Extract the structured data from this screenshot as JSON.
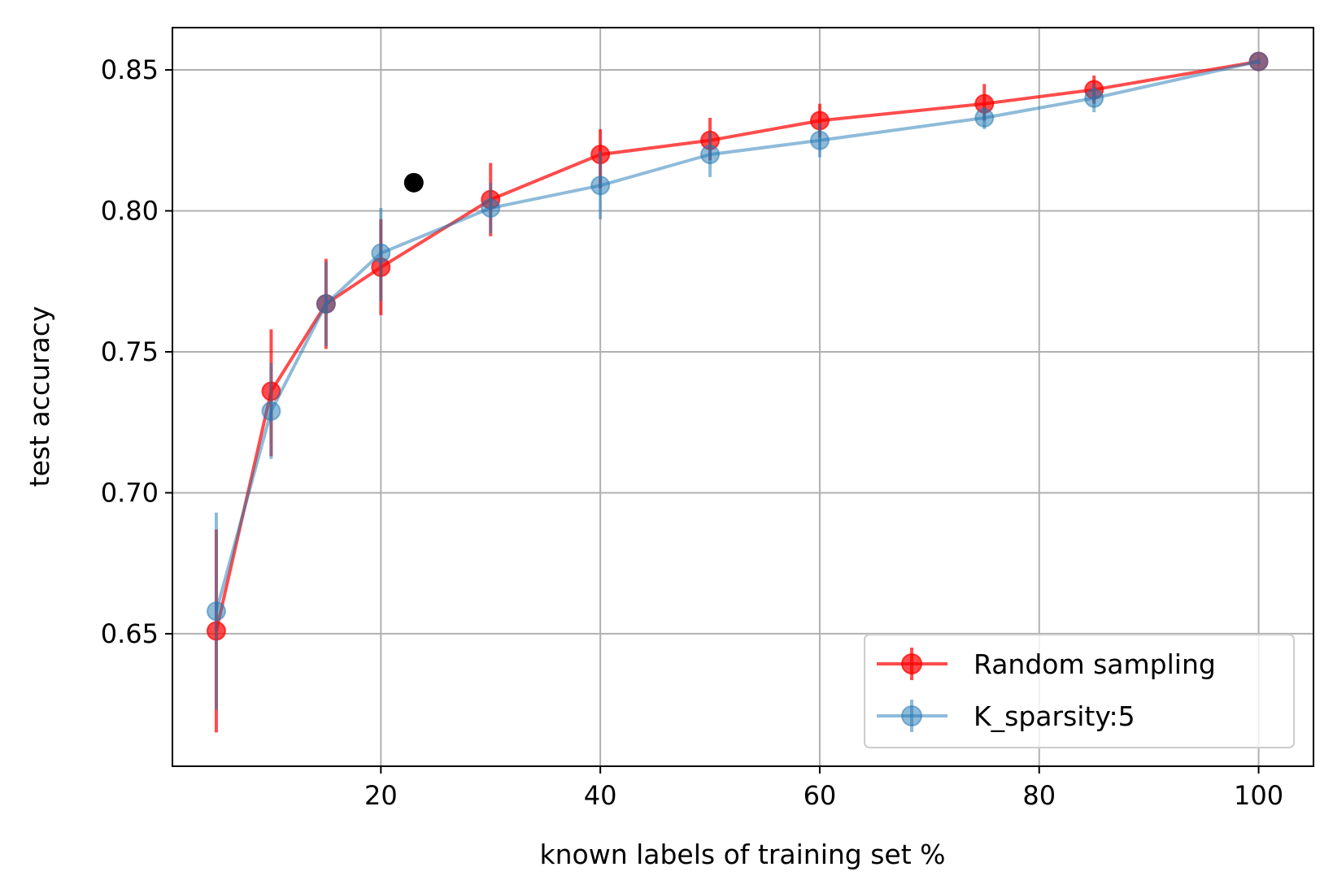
{
  "chart_data": {
    "type": "line",
    "xlabel": "known labels of training set %",
    "ylabel": "test accuracy",
    "xlim": [
      1,
      105
    ],
    "ylim": [
      0.603,
      0.865
    ],
    "xticks": [
      20,
      40,
      60,
      80,
      100
    ],
    "xtick_labels": [
      "20",
      "40",
      "60",
      "80",
      "100"
    ],
    "yticks": [
      0.65,
      0.7,
      0.75,
      0.8,
      0.85
    ],
    "ytick_labels": [
      "0.65",
      "0.70",
      "0.75",
      "0.80",
      "0.85"
    ],
    "grid": true,
    "legend_position": "lower-right",
    "series": [
      {
        "name": "Random sampling",
        "color": "#ff0000",
        "x": [
          5,
          10,
          15,
          20,
          30,
          40,
          50,
          60,
          75,
          85,
          100
        ],
        "y": [
          0.651,
          0.736,
          0.767,
          0.78,
          0.804,
          0.82,
          0.825,
          0.832,
          0.838,
          0.843,
          0.853
        ],
        "err_low": [
          0.615,
          0.713,
          0.751,
          0.763,
          0.791,
          0.808,
          0.818,
          0.826,
          0.832,
          0.838,
          0.852
        ],
        "err_high": [
          0.687,
          0.758,
          0.783,
          0.797,
          0.817,
          0.829,
          0.833,
          0.838,
          0.845,
          0.848,
          0.854
        ]
      },
      {
        "name": "K_sparsity:5",
        "color": "#1f77b4",
        "x": [
          5,
          10,
          15,
          20,
          30,
          40,
          50,
          60,
          75,
          85,
          100
        ],
        "y": [
          0.658,
          0.729,
          0.767,
          0.785,
          0.801,
          0.809,
          0.82,
          0.825,
          0.833,
          0.84,
          0.853
        ],
        "err_low": [
          0.623,
          0.712,
          0.752,
          0.768,
          0.792,
          0.797,
          0.812,
          0.819,
          0.829,
          0.835,
          0.852
        ],
        "err_high": [
          0.693,
          0.746,
          0.782,
          0.801,
          0.81,
          0.821,
          0.828,
          0.831,
          0.837,
          0.845,
          0.854
        ]
      }
    ],
    "extra_points": [
      {
        "x": 23,
        "y": 0.81,
        "color": "#000000"
      }
    ]
  }
}
